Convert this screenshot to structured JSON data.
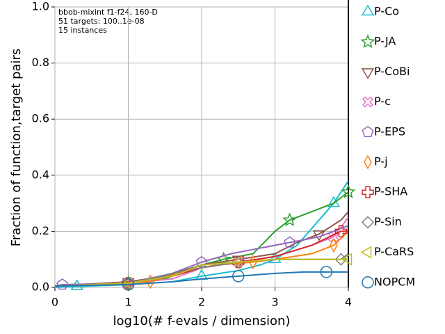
{
  "chart_data": {
    "type": "line",
    "annotations": [
      "bbob-mixint f1-f24, 160-D",
      "51 targets: 100..1e-08",
      "15 instances"
    ],
    "x_label": "log10(# f-evals / dimension)",
    "y_label": "Fraction of function,target pairs",
    "xlim": [
      0,
      4
    ],
    "ylim": [
      0,
      1
    ],
    "xticks": [
      0,
      1,
      2,
      3,
      4
    ],
    "yticks": [
      {
        "value": 0,
        "label": "0.0"
      },
      0.2,
      0.4,
      0.6,
      0.8,
      {
        "value": 1,
        "label": "1.0"
      }
    ],
    "grid": true,
    "series": [
      {
        "name": "P-Co",
        "color": "#17becf",
        "marker": "^",
        "x": [
          0,
          0.3,
          1,
          1.6,
          2,
          2.5,
          2.8,
          3,
          3.3,
          3.6,
          3.8,
          4
        ],
        "values": [
          0,
          0.003,
          0.01,
          0.02,
          0.04,
          0.06,
          0.08,
          0.1,
          0.15,
          0.24,
          0.3,
          0.38
        ]
      },
      {
        "name": "P-JA",
        "color": "#2ca02c",
        "marker": "*",
        "x": [
          0,
          1,
          1.5,
          2,
          2.3,
          2.7,
          3,
          3.2,
          3.5,
          3.8,
          4
        ],
        "values": [
          0.005,
          0.015,
          0.03,
          0.08,
          0.1,
          0.12,
          0.2,
          0.24,
          0.27,
          0.3,
          0.34
        ]
      },
      {
        "name": "P-CoBi",
        "color": "#8c564b",
        "marker": "v",
        "x": [
          0,
          1,
          1.5,
          2,
          2.5,
          3,
          3.3,
          3.6,
          3.9,
          4
        ],
        "values": [
          0.005,
          0.02,
          0.04,
          0.08,
          0.1,
          0.12,
          0.16,
          0.19,
          0.24,
          0.27
        ]
      },
      {
        "name": "P-c",
        "color": "#e377c2",
        "marker": "X",
        "x": [
          0,
          1,
          1.6,
          2,
          2.5,
          3,
          3.5,
          3.8,
          4
        ],
        "values": [
          0.005,
          0.015,
          0.03,
          0.07,
          0.09,
          0.11,
          0.15,
          0.18,
          0.25
        ]
      },
      {
        "name": "P-EPS",
        "color": "#9467bd",
        "marker": "p",
        "x": [
          0,
          0.1,
          1,
          1.5,
          2,
          2.4,
          2.8,
          3.2,
          3.6,
          4
        ],
        "values": [
          0.005,
          0.01,
          0.015,
          0.04,
          0.09,
          0.12,
          0.14,
          0.16,
          0.18,
          0.22
        ]
      },
      {
        "name": "P-j",
        "color": "#ff7f0e",
        "marker": "d",
        "x": [
          0,
          1.3,
          1.8,
          2.2,
          2.7,
          3,
          3.5,
          3.8,
          4
        ],
        "values": [
          0.005,
          0.02,
          0.06,
          0.08,
          0.09,
          0.1,
          0.12,
          0.15,
          0.2
        ]
      },
      {
        "name": "P-SHA",
        "color": "#d62728",
        "marker": "P",
        "x": [
          0,
          1,
          1.6,
          2,
          2.5,
          3,
          3.5,
          3.9,
          4
        ],
        "values": [
          0.005,
          0.015,
          0.04,
          0.07,
          0.09,
          0.11,
          0.15,
          0.2,
          0.2
        ]
      },
      {
        "name": "P-Sin",
        "color": "#7f7f7f",
        "marker": "D",
        "x": [
          0,
          1,
          1.6,
          2,
          2.5,
          3,
          3.5,
          3.9,
          4
        ],
        "values": [
          0.005,
          0.015,
          0.05,
          0.07,
          0.09,
          0.1,
          0.1,
          0.1,
          0.12
        ]
      },
      {
        "name": "P-CaRS",
        "color": "#bcbd22",
        "marker": "<",
        "x": [
          0,
          1,
          1.6,
          2,
          2.5,
          3,
          3.5,
          4
        ],
        "values": [
          0.005,
          0.015,
          0.04,
          0.08,
          0.09,
          0.1,
          0.1,
          0.1
        ]
      },
      {
        "name": "NOPCM",
        "color": "#1f77b4",
        "marker": "o",
        "x": [
          0,
          1,
          1.6,
          2,
          2.5,
          3,
          3.4,
          3.7,
          4
        ],
        "values": [
          0.005,
          0.01,
          0.02,
          0.03,
          0.04,
          0.05,
          0.055,
          0.055,
          0.055
        ]
      }
    ]
  }
}
